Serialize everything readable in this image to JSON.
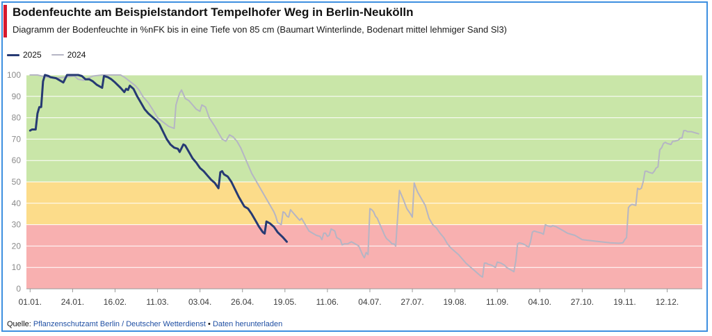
{
  "header": {
    "title": "Bodenfeuchte am Beispielstandort Tempelhofer Weg in Berlin-Neukölln",
    "subtitle": "Diagramm der Bodenfeuchte in %nFK bis in eine Tiefe von 85 cm (Baumart Winterlinde, Bodenart mittel lehmiger Sand Sl3)"
  },
  "footer": {
    "source_label": "Quelle:",
    "source_link": "Pflanzenschutzamt Berlin / Deutscher Wetterdienst",
    "separator": "•",
    "download_link": "Daten herunterladen"
  },
  "colors": {
    "band_green": "#c9e6a8",
    "band_yellow": "#fcdc8a",
    "band_red": "#f8b0b0",
    "series_2025": "#263a73",
    "series_2024": "#b5b5c4",
    "frame": "#3d8fe0",
    "accent": "#d7192f"
  },
  "chart_data": {
    "type": "line",
    "title": "Bodenfeuchte am Beispielstandort Tempelhofer Weg in Berlin-Neukölln",
    "subtitle": "Diagramm der Bodenfeuchte in %nFK bis in eine Tiefe von 85 cm (Baumart Winterlinde, Bodenart mittel lehmiger Sand Sl3)",
    "xlabel": "",
    "ylabel": "",
    "ylim": [
      0,
      100
    ],
    "yticks": [
      0,
      10,
      20,
      30,
      40,
      50,
      60,
      70,
      80,
      90,
      100
    ],
    "x_tick_labels": [
      "01.01.",
      "24.01.",
      "16.02.",
      "11.03.",
      "03.04.",
      "26.04.",
      "19.05.",
      "11.06.",
      "04.07.",
      "27.07.",
      "19.08.",
      "11.09.",
      "04.10.",
      "27.10.",
      "19.11.",
      "12.12."
    ],
    "x_unit": "day of year",
    "x_ticks_day": [
      1,
      24,
      47,
      70,
      93,
      116,
      139,
      162,
      185,
      208,
      231,
      254,
      277,
      300,
      323,
      346
    ],
    "xlim_day": [
      -1,
      365
    ],
    "grid": true,
    "legend_position": "top-left",
    "bands": [
      {
        "from": 50,
        "to": 100,
        "color": "#c9e6a8"
      },
      {
        "from": 30,
        "to": 50,
        "color": "#fcdc8a"
      },
      {
        "from": 0,
        "to": 30,
        "color": "#f8b0b0"
      }
    ],
    "series": [
      {
        "name": "2025",
        "color": "#263a73",
        "points": [
          [
            1,
            74
          ],
          [
            2,
            74.5
          ],
          [
            4,
            74.5
          ],
          [
            5,
            82
          ],
          [
            6,
            85
          ],
          [
            7,
            85
          ],
          [
            8,
            97
          ],
          [
            9,
            100
          ],
          [
            11,
            99.5
          ],
          [
            12,
            99
          ],
          [
            15,
            98.5
          ],
          [
            17,
            97.5
          ],
          [
            19,
            96.5
          ],
          [
            21,
            100
          ],
          [
            23,
            100
          ],
          [
            27,
            100
          ],
          [
            29,
            99.5
          ],
          [
            31,
            98
          ],
          [
            33,
            98
          ],
          [
            35,
            97
          ],
          [
            37,
            95.5
          ],
          [
            39,
            94.5
          ],
          [
            40,
            94
          ],
          [
            41,
            99.5
          ],
          [
            43,
            99
          ],
          [
            45,
            98
          ],
          [
            47,
            96.5
          ],
          [
            50,
            94
          ],
          [
            52,
            92
          ],
          [
            53,
            93.5
          ],
          [
            54,
            93
          ],
          [
            55,
            95
          ],
          [
            57,
            93.5
          ],
          [
            59,
            90
          ],
          [
            61,
            87
          ],
          [
            63,
            84
          ],
          [
            65,
            82
          ],
          [
            67,
            80.5
          ],
          [
            69,
            79
          ],
          [
            71,
            77
          ],
          [
            73,
            73.5
          ],
          [
            75,
            70
          ],
          [
            77,
            67.5
          ],
          [
            79,
            66
          ],
          [
            81,
            65.5
          ],
          [
            82,
            64
          ],
          [
            84,
            67.5
          ],
          [
            85,
            67
          ],
          [
            87,
            64
          ],
          [
            89,
            61
          ],
          [
            91,
            59
          ],
          [
            93,
            56.5
          ],
          [
            95,
            55
          ],
          [
            97,
            53
          ],
          [
            99,
            51
          ],
          [
            101,
            49.5
          ],
          [
            103,
            47
          ],
          [
            104,
            54.5
          ],
          [
            105,
            55
          ],
          [
            106,
            53.5
          ],
          [
            108,
            52.5
          ],
          [
            110,
            50
          ],
          [
            112,
            46.5
          ],
          [
            114,
            43
          ],
          [
            116,
            40
          ],
          [
            117,
            38.5
          ],
          [
            119,
            37.5
          ],
          [
            121,
            35
          ],
          [
            123,
            32
          ],
          [
            125,
            29
          ],
          [
            127,
            26.5
          ],
          [
            128,
            25.8
          ],
          [
            129,
            31.5
          ],
          [
            131,
            30.5
          ],
          [
            133,
            29
          ],
          [
            135,
            26.5
          ],
          [
            138,
            24
          ],
          [
            140,
            22
          ]
        ]
      },
      {
        "name": "2024",
        "color": "#b5b5c4",
        "points": [
          [
            1,
            100
          ],
          [
            5,
            100
          ],
          [
            10,
            99
          ],
          [
            15,
            98.5
          ],
          [
            20,
            99
          ],
          [
            25,
            99.5
          ],
          [
            27,
            98
          ],
          [
            30,
            97.5
          ],
          [
            35,
            99.5
          ],
          [
            40,
            100
          ],
          [
            45,
            100
          ],
          [
            50,
            100
          ],
          [
            52,
            99
          ],
          [
            55,
            97
          ],
          [
            58,
            95
          ],
          [
            60,
            93
          ],
          [
            62,
            90
          ],
          [
            65,
            87
          ],
          [
            68,
            83
          ],
          [
            70,
            80
          ],
          [
            73,
            78
          ],
          [
            76,
            76
          ],
          [
            79,
            75
          ],
          [
            80,
            86
          ],
          [
            81,
            89
          ],
          [
            82,
            91.5
          ],
          [
            83,
            93
          ],
          [
            84,
            91
          ],
          [
            85,
            89
          ],
          [
            87,
            88
          ],
          [
            89,
            86
          ],
          [
            91,
            84
          ],
          [
            93,
            83
          ],
          [
            94,
            86
          ],
          [
            96,
            85
          ],
          [
            98,
            80
          ],
          [
            101,
            76
          ],
          [
            103,
            73
          ],
          [
            105,
            70
          ],
          [
            107,
            69
          ],
          [
            109,
            72
          ],
          [
            111,
            71
          ],
          [
            113,
            69
          ],
          [
            115,
            66
          ],
          [
            117,
            62
          ],
          [
            119,
            58
          ],
          [
            121,
            54
          ],
          [
            123,
            51
          ],
          [
            125,
            48
          ],
          [
            127,
            45
          ],
          [
            129,
            42
          ],
          [
            131,
            39
          ],
          [
            133,
            36
          ],
          [
            134,
            34
          ],
          [
            135,
            31
          ],
          [
            137,
            30
          ],
          [
            138,
            36
          ],
          [
            139,
            35.5
          ],
          [
            140,
            34
          ],
          [
            141,
            33.5
          ],
          [
            142,
            37
          ],
          [
            143,
            36
          ],
          [
            145,
            34
          ],
          [
            147,
            32
          ],
          [
            148,
            33
          ],
          [
            150,
            30
          ],
          [
            152,
            27
          ],
          [
            154,
            26
          ],
          [
            156,
            25
          ],
          [
            158,
            24.5
          ],
          [
            159,
            23
          ],
          [
            160,
            26
          ],
          [
            161,
            26
          ],
          [
            162,
            24.5
          ],
          [
            163,
            25
          ],
          [
            164,
            28
          ],
          [
            166,
            27
          ],
          [
            167,
            24
          ],
          [
            169,
            23
          ],
          [
            170,
            20.5
          ],
          [
            171,
            21
          ],
          [
            173,
            21
          ],
          [
            175,
            22
          ],
          [
            177,
            21
          ],
          [
            179,
            20
          ],
          [
            180,
            18
          ],
          [
            181,
            16
          ],
          [
            182,
            14.5
          ],
          [
            183,
            17
          ],
          [
            184,
            16
          ],
          [
            185,
            37.5
          ],
          [
            186,
            37
          ],
          [
            187,
            36
          ],
          [
            188,
            34
          ],
          [
            189,
            33
          ],
          [
            190,
            31
          ],
          [
            191,
            29
          ],
          [
            192,
            27
          ],
          [
            193,
            25
          ],
          [
            194,
            23.5
          ],
          [
            196,
            22
          ],
          [
            197,
            21
          ],
          [
            198,
            21
          ],
          [
            199,
            20
          ],
          [
            201,
            46
          ],
          [
            203,
            42
          ],
          [
            205,
            37.5
          ],
          [
            207,
            35
          ],
          [
            208,
            33.5
          ],
          [
            209,
            49.5
          ],
          [
            210,
            47
          ],
          [
            211,
            45
          ],
          [
            212,
            43.5
          ],
          [
            213,
            42
          ],
          [
            215,
            39
          ],
          [
            216,
            36
          ],
          [
            217,
            33
          ],
          [
            219,
            30
          ],
          [
            221,
            28.5
          ],
          [
            223,
            26
          ],
          [
            225,
            24
          ],
          [
            227,
            21
          ],
          [
            229,
            19
          ],
          [
            231,
            17.5
          ],
          [
            233,
            16
          ],
          [
            235,
            14
          ],
          [
            237,
            12
          ],
          [
            239,
            10.5
          ],
          [
            241,
            9
          ],
          [
            243,
            7.5
          ],
          [
            245,
            6
          ],
          [
            246,
            5.5
          ],
          [
            247,
            12
          ],
          [
            248,
            12
          ],
          [
            249,
            11.5
          ],
          [
            251,
            11
          ],
          [
            252,
            10.5
          ],
          [
            253,
            10
          ],
          [
            254,
            12.5
          ],
          [
            256,
            12
          ],
          [
            258,
            11
          ],
          [
            259,
            10
          ],
          [
            261,
            9
          ],
          [
            262,
            8.5
          ],
          [
            263,
            8
          ],
          [
            264,
            13
          ],
          [
            265,
            21
          ],
          [
            266,
            21.5
          ],
          [
            268,
            21
          ],
          [
            270,
            20
          ],
          [
            271,
            19.5
          ],
          [
            272,
            22
          ],
          [
            273,
            26.5
          ],
          [
            274,
            27
          ],
          [
            276,
            26.5
          ],
          [
            278,
            26
          ],
          [
            279,
            25.5
          ],
          [
            280,
            30
          ],
          [
            281,
            29.5
          ],
          [
            283,
            29
          ],
          [
            284,
            29.5
          ],
          [
            286,
            29
          ],
          [
            288,
            28
          ],
          [
            290,
            27
          ],
          [
            292,
            26
          ],
          [
            294,
            25.5
          ],
          [
            296,
            25
          ],
          [
            298,
            24
          ],
          [
            300,
            23
          ],
          [
            305,
            22.5
          ],
          [
            310,
            22
          ],
          [
            315,
            21.5
          ],
          [
            320,
            21.3
          ],
          [
            322,
            21.5
          ],
          [
            323,
            23
          ],
          [
            324,
            24
          ],
          [
            325,
            38
          ],
          [
            326,
            39
          ],
          [
            327,
            39.5
          ],
          [
            329,
            39
          ],
          [
            330,
            47
          ],
          [
            331,
            46.5
          ],
          [
            332,
            47
          ],
          [
            333,
            50
          ],
          [
            334,
            55
          ],
          [
            335,
            55
          ],
          [
            336,
            54.5
          ],
          [
            338,
            54
          ],
          [
            339,
            55
          ],
          [
            340,
            56.5
          ],
          [
            341,
            57
          ],
          [
            342,
            65
          ],
          [
            343,
            66
          ],
          [
            344,
            68
          ],
          [
            345,
            68.5
          ],
          [
            346,
            68
          ],
          [
            348,
            67.5
          ],
          [
            349,
            69
          ],
          [
            350,
            69
          ],
          [
            352,
            69.5
          ],
          [
            353,
            70.5
          ],
          [
            354,
            70.5
          ],
          [
            355,
            74
          ],
          [
            356,
            74
          ],
          [
            357,
            73.5
          ],
          [
            359,
            73.5
          ],
          [
            361,
            73
          ],
          [
            363,
            72.5
          ]
        ]
      }
    ]
  }
}
